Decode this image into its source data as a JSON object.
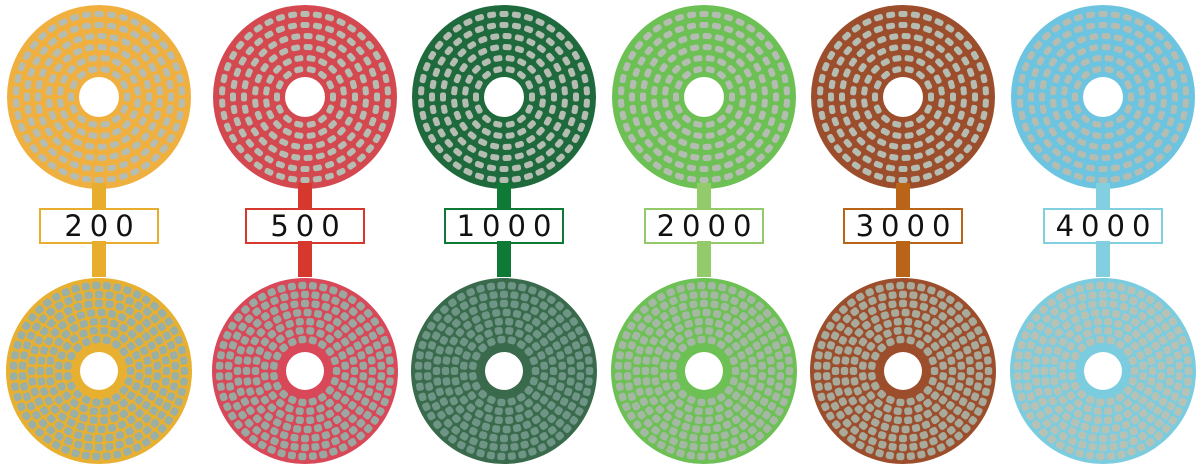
{
  "pads": [
    {
      "grit": "200",
      "color": "#e8ad2c",
      "fill": "#f0b040",
      "bottom_fill": "#9ab0a6",
      "bottom_line": "#e8b030"
    },
    {
      "grit": "500",
      "color": "#d6382d",
      "fill": "#d44850",
      "bottom_fill": "#9aa8a2",
      "bottom_line": "#d84858"
    },
    {
      "grit": "1000",
      "color": "#0f7a35",
      "fill": "#1f6a3c",
      "bottom_fill": "#6e9585",
      "bottom_line": "#3a6a4c"
    },
    {
      "grit": "2000",
      "color": "#94cb6a",
      "fill": "#6cc054",
      "bottom_fill": "#a4b8a4",
      "bottom_line": "#6cc054"
    },
    {
      "grit": "3000",
      "color": "#b96416",
      "fill": "#9c4e2c",
      "bottom_fill": "#a8aa9c",
      "bottom_line": "#9c4e2c"
    },
    {
      "grit": "4000",
      "color": "#82cfe0",
      "fill": "#6cc4e0",
      "bottom_fill": "#b8c2b4",
      "bottom_line": "#7ccce0"
    }
  ]
}
